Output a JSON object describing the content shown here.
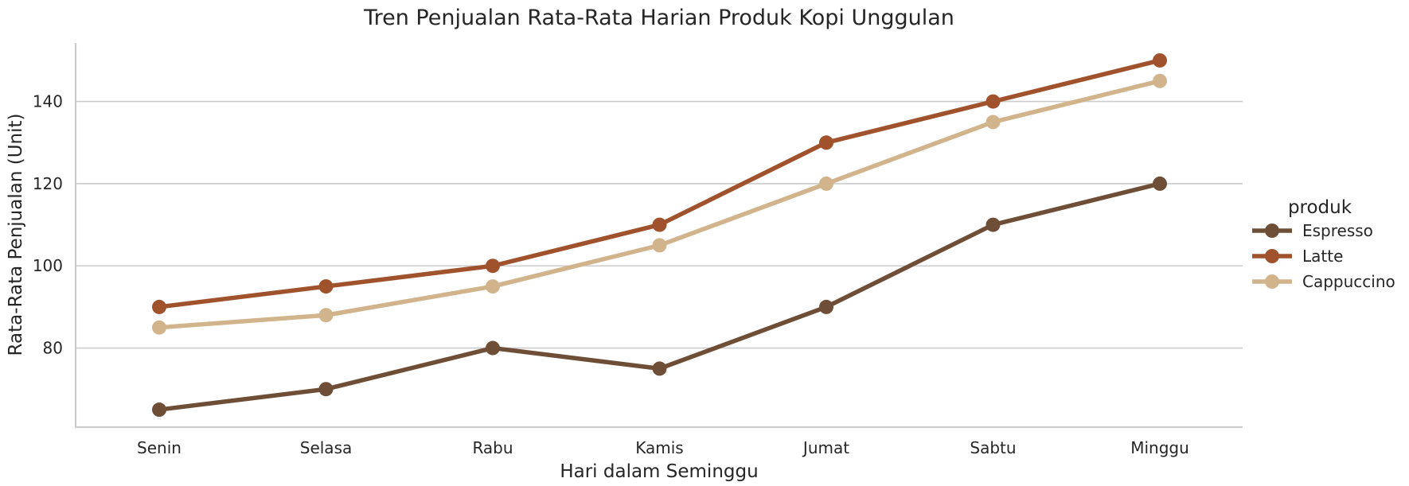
{
  "chart_data": {
    "type": "line",
    "title": "Tren Penjualan Rata-Rata Harian Produk Kopi Unggulan",
    "xlabel": "Hari dalam Seminggu",
    "ylabel": "Rata-Rata Penjualan (Unit)",
    "categories": [
      "Senin",
      "Selasa",
      "Rabu",
      "Kamis",
      "Jumat",
      "Sabtu",
      "Minggu"
    ],
    "ylim": [
      60.75,
      154.25
    ],
    "yticks": [
      80,
      100,
      120,
      140
    ],
    "grid": "horizontal",
    "legend": {
      "title": "produk",
      "placement": "right"
    },
    "series": [
      {
        "name": "Espresso",
        "color": "#6f4e37",
        "values": [
          65,
          70,
          80,
          75,
          90,
          110,
          120
        ]
      },
      {
        "name": "Latte",
        "color": "#a0522d",
        "values": [
          90,
          95,
          100,
          110,
          130,
          140,
          150
        ]
      },
      {
        "name": "Cappuccino",
        "color": "#d2b48c",
        "values": [
          85,
          88,
          95,
          105,
          120,
          135,
          145
        ]
      }
    ]
  }
}
